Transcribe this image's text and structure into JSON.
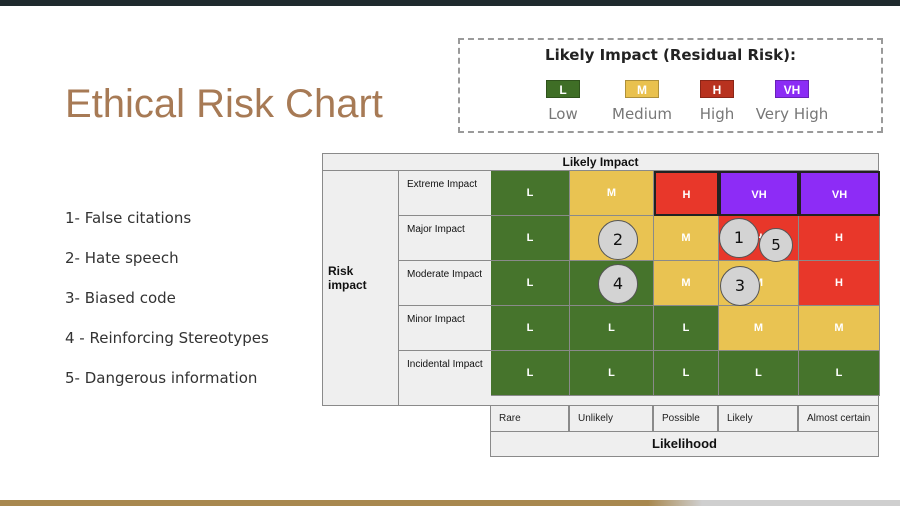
{
  "slide": {
    "title": "Ethical Risk Chart",
    "risks": [
      "1- False citations",
      "2- Hate speech",
      "3- Biased code",
      "4 - Reinforcing Stereotypes",
      "5- Dangerous information"
    ]
  },
  "legend": {
    "title": "Likely Impact (Residual Risk):",
    "items": [
      {
        "code": "L",
        "label": "Low",
        "color": "#3f6e26"
      },
      {
        "code": "M",
        "label": "Medium",
        "color": "#e9c14e"
      },
      {
        "code": "H",
        "label": "High",
        "color": "#b8321f"
      },
      {
        "code": "VH",
        "label": "Very High",
        "color": "#8b2cf5"
      }
    ]
  },
  "matrix": {
    "header": "Likely Impact",
    "risk_axis_label": "Risk impact",
    "likelihood_label": "Likelihood",
    "impact_rows": [
      "Extreme Impact",
      "Major Impact",
      "Moderate Impact",
      "Minor Impact",
      "Incidental Impact"
    ],
    "likelihood_cols": [
      "Rare",
      "Unlikely",
      "Possible",
      "Likely",
      "Almost certain"
    ],
    "cells": [
      [
        "L",
        "M",
        "H",
        "VH",
        "VH"
      ],
      [
        "L",
        "M",
        "M",
        "H",
        "H"
      ],
      [
        "L",
        "L",
        "M",
        "M",
        "H"
      ],
      [
        "L",
        "L",
        "L",
        "M",
        "M"
      ],
      [
        "L",
        "L",
        "L",
        "L",
        "L"
      ]
    ],
    "colors": {
      "L": "#46742c",
      "M": "#e9c352",
      "H": "#e8372a",
      "VH": "#8d2cf6"
    },
    "markers": [
      "1",
      "2",
      "3",
      "4",
      "5"
    ]
  }
}
